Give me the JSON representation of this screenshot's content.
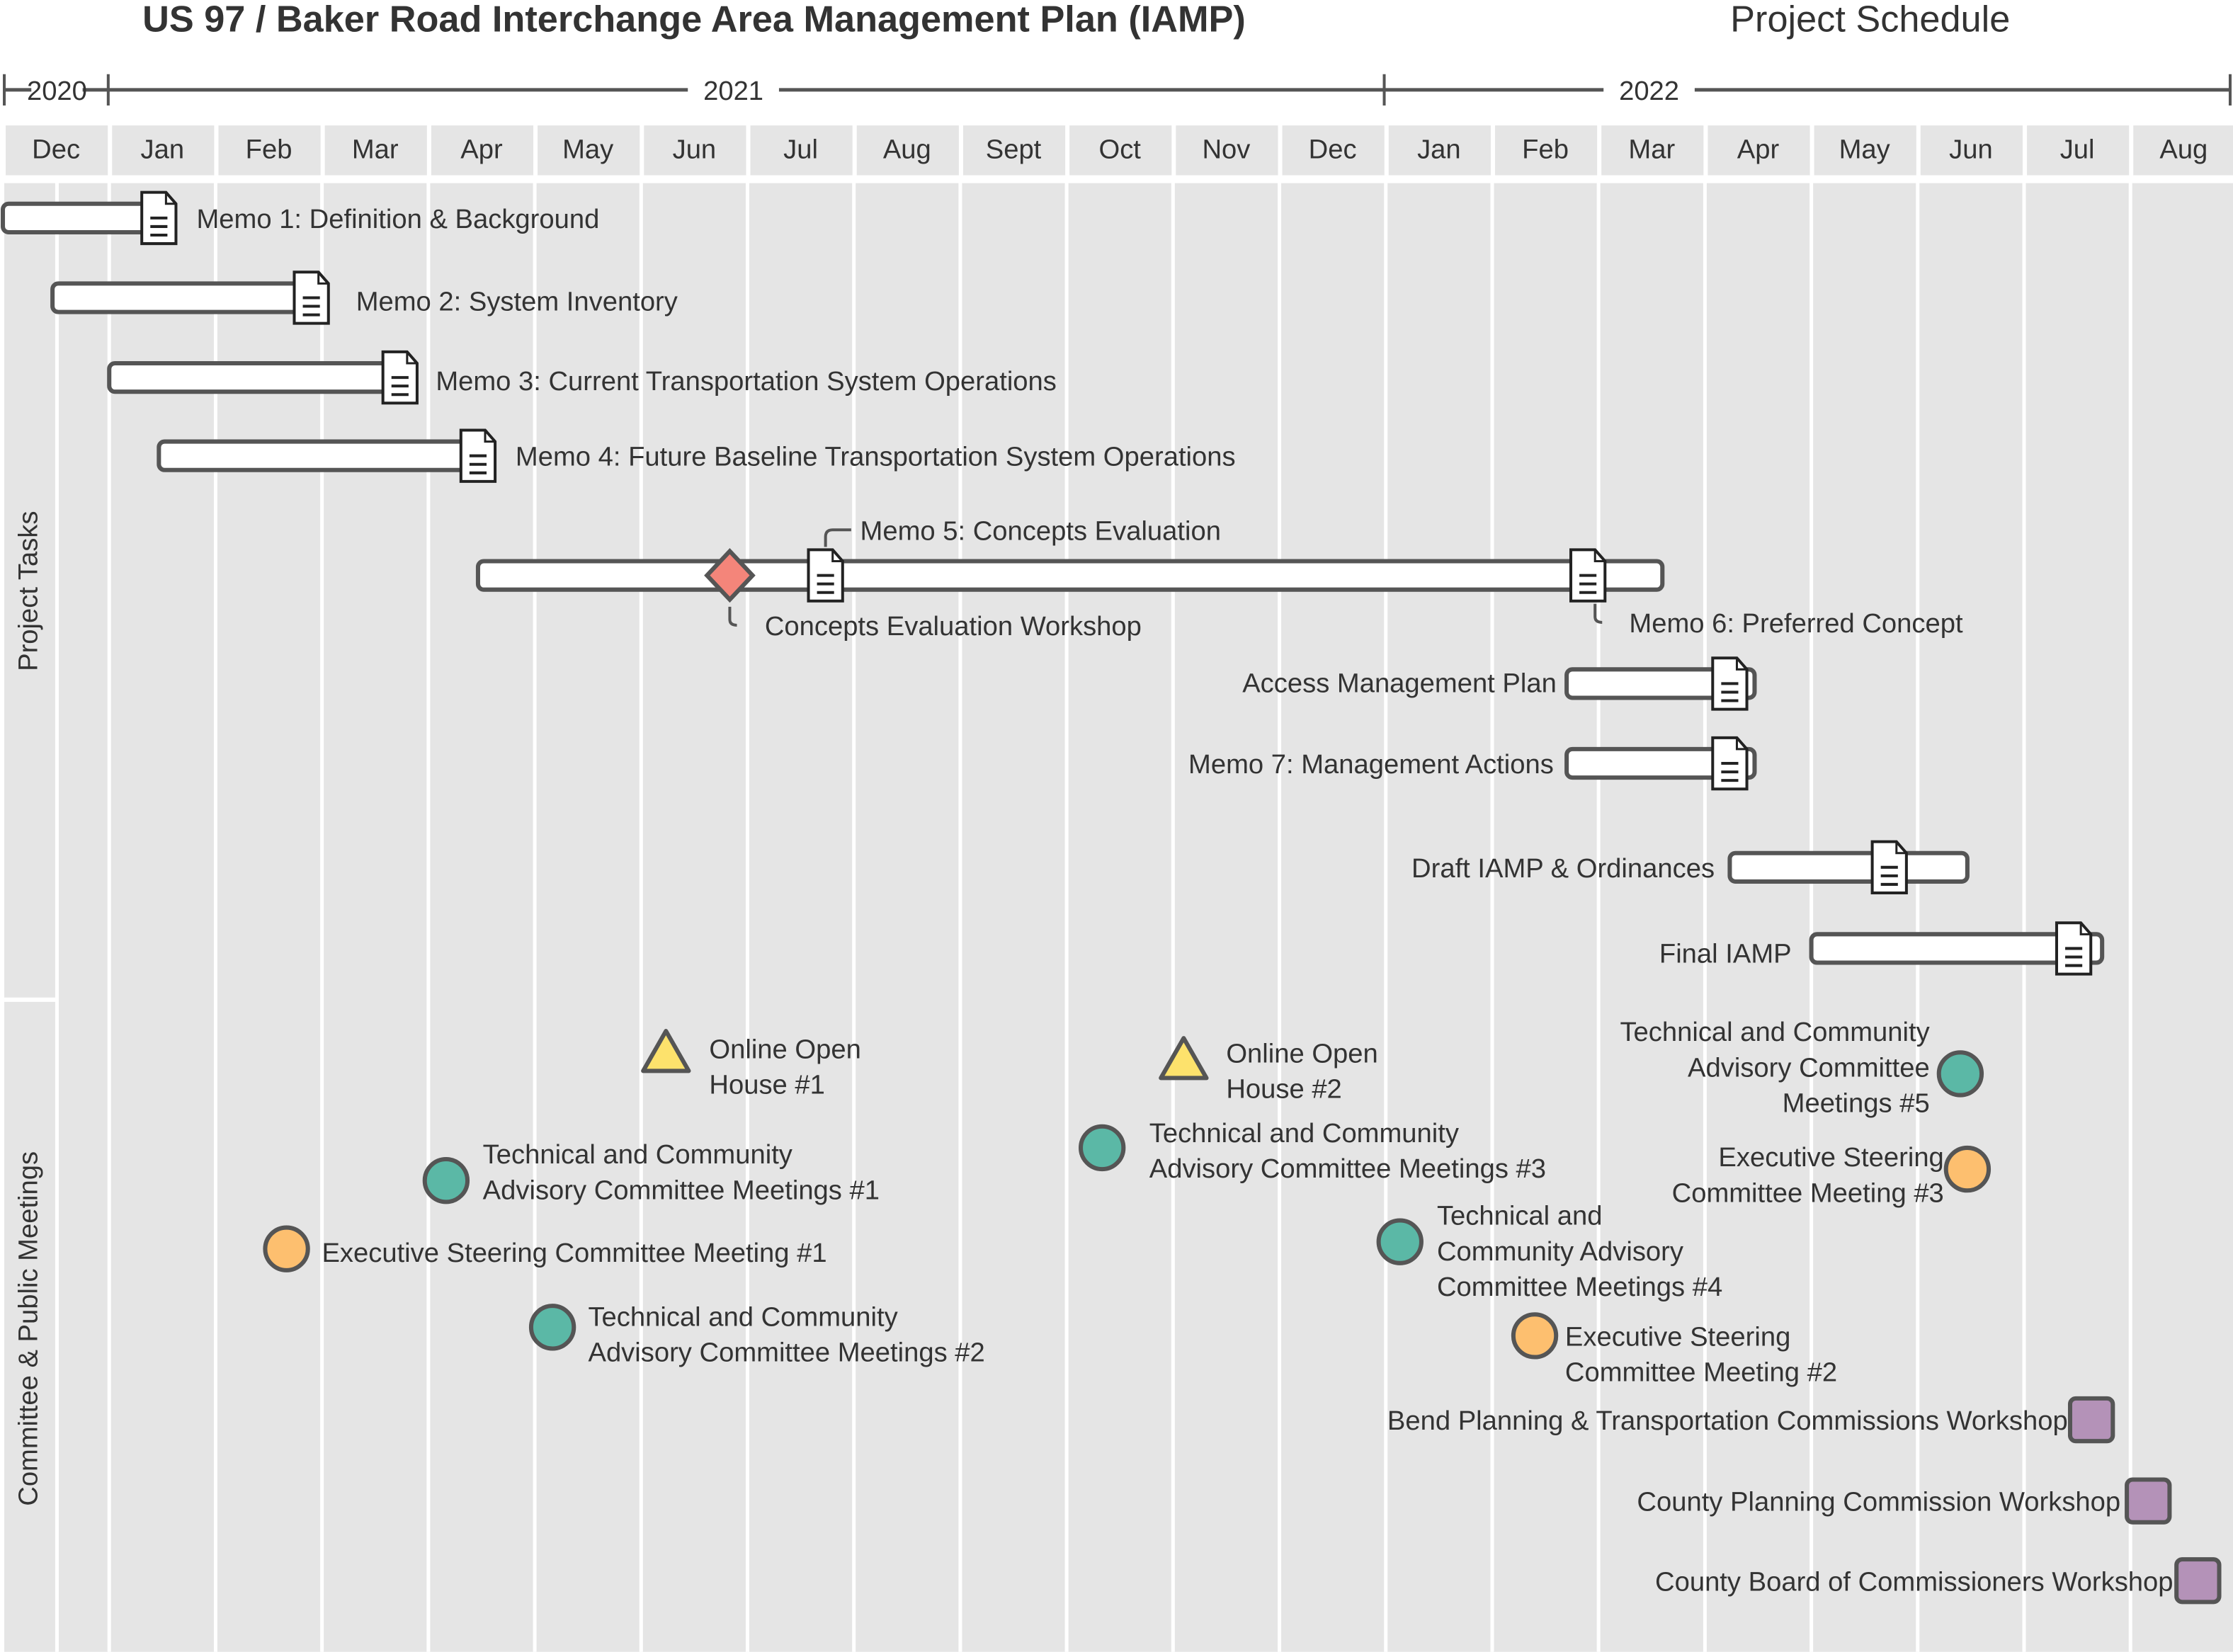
{
  "header": {
    "title": "US 97 / Baker Road Interchange Area Management Plan (IAMP)",
    "subtitle": "Project Schedule"
  },
  "colors": {
    "background": "#e5e5e5",
    "outline": "#555555",
    "committee_meeting": "#5bb8a6",
    "executive_meeting": "#fdbf6f",
    "open_house": "#fde26c",
    "workshop_milestone": "#f4857a",
    "commission_workshop": "#b492b8"
  },
  "chart_data": {
    "type": "gantt",
    "title": "US 97 / Baker Road Interchange Area Management Plan (IAMP)",
    "subtitle": "Project Schedule",
    "years": [
      "2020",
      "2021",
      "2022"
    ],
    "months": [
      "Dec",
      "Jan",
      "Feb",
      "Mar",
      "Apr",
      "May",
      "Jun",
      "Jul",
      "Aug",
      "Sept",
      "Oct",
      "Nov",
      "Dec",
      "Jan",
      "Feb",
      "Mar",
      "Apr",
      "May",
      "Jun",
      "Jul",
      "Aug"
    ],
    "xlim": [
      "2020-12-01",
      "2022-08-31"
    ],
    "sections": [
      "Project Tasks",
      "Committee & Public Meetings"
    ],
    "tasks": [
      {
        "label": "Memo 1: Definition & Background",
        "start": "2020-12-01",
        "end": "2021-01-15",
        "deliverable": "2021-01-15"
      },
      {
        "label": "Memo 2: System Inventory",
        "start": "2020-12-15",
        "end": "2021-02-28",
        "deliverable": "2021-02-28"
      },
      {
        "label": "Memo 3: Current Transportation System Operations",
        "start": "2021-01-01",
        "end": "2021-03-23",
        "deliverable": "2021-03-23"
      },
      {
        "label": "Memo 4: Future Baseline Transportation System Operations",
        "start": "2021-01-15",
        "end": "2021-04-15",
        "deliverable": "2021-04-15"
      },
      {
        "label": "Memo 5: Concepts Evaluation",
        "start": "2021-04-15",
        "end": "2022-03-19",
        "deliverable": "2021-07-23",
        "milestone": {
          "label": "Concepts Evaluation Workshop",
          "date": "2021-06-26"
        },
        "deliverable2": {
          "label": "Memo 6: Preferred Concept",
          "date": "2022-02-28"
        }
      },
      {
        "label": "Access Management Plan",
        "start": "2022-02-22",
        "end": "2022-04-15",
        "deliverable": "2022-04-08"
      },
      {
        "label": "Memo 7: Management Actions",
        "start": "2022-02-22",
        "end": "2022-04-15",
        "deliverable": "2022-04-08"
      },
      {
        "label": "Draft IAMP & Ordinances",
        "start": "2022-04-08",
        "end": "2022-06-15",
        "deliverable": "2022-05-23"
      },
      {
        "label": "Final IAMP",
        "start": "2022-05-01",
        "end": "2022-07-23",
        "deliverable": "2022-07-15"
      }
    ],
    "meetings": [
      {
        "kind": "open_house",
        "date": "2021-06-08",
        "label": [
          "Online Open",
          "House #1"
        ]
      },
      {
        "kind": "open_house",
        "date": "2021-11-04",
        "label": [
          "Online Open",
          "House #2"
        ]
      },
      {
        "kind": "committee_meeting",
        "date": "2021-04-06",
        "label": [
          "Technical and Community",
          "Advisory Committee Meetings #1"
        ]
      },
      {
        "kind": "executive_meeting",
        "date": "2021-02-21",
        "label": [
          "Executive Steering Committee Meeting #1"
        ]
      },
      {
        "kind": "committee_meeting",
        "date": "2021-05-06",
        "label": [
          "Technical and Community",
          "Advisory Committee Meetings #2"
        ]
      },
      {
        "kind": "committee_meeting",
        "date": "2021-10-11",
        "label": [
          "Technical and Community",
          "Advisory Committee Meetings #3"
        ]
      },
      {
        "kind": "committee_meeting",
        "date": "2022-01-05",
        "label": [
          "Technical and",
          "Community Advisory",
          "Committee Meetings #4"
        ]
      },
      {
        "kind": "executive_meeting",
        "date": "2022-02-13",
        "label": [
          "Executive Steering",
          "Committee Meeting #2"
        ]
      },
      {
        "kind": "committee_meeting",
        "date": "2022-06-13",
        "label": [
          "Technical and Community",
          "Advisory Committee",
          "Meetings #5"
        ]
      },
      {
        "kind": "executive_meeting",
        "date": "2022-06-15",
        "label": [
          "Executive Steering",
          "Committee Meeting #3"
        ]
      },
      {
        "kind": "commission_workshop",
        "date": "2022-07-20",
        "label": [
          "Bend Planning & Transportation Commissions Workshop"
        ]
      },
      {
        "kind": "commission_workshop",
        "date": "2022-08-06",
        "label": [
          "County Planning Commission Workshop"
        ]
      },
      {
        "kind": "commission_workshop",
        "date": "2022-08-20",
        "label": [
          "County Board of Commissioners Workshop"
        ]
      }
    ]
  }
}
